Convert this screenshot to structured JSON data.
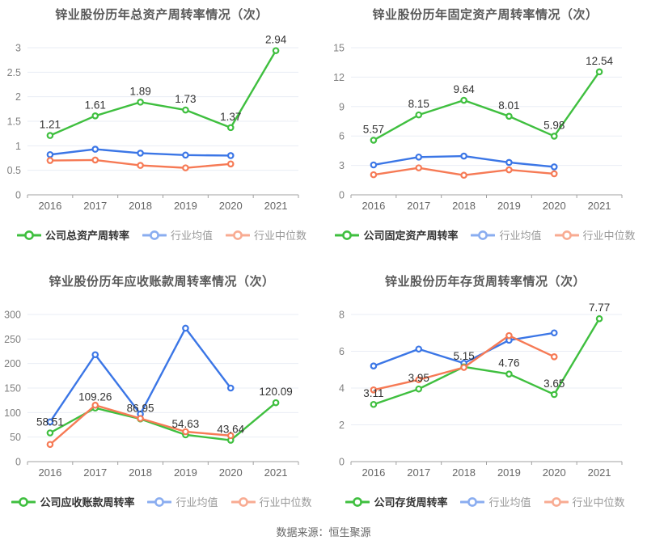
{
  "page": {
    "source_note": "数据来源：恒生聚源"
  },
  "colors": {
    "company_line": "#3fbf3f",
    "industry_mean_line": "#3b76e6",
    "industry_median_line": "#f67a55",
    "legend_mean_marker": "#8aadf0",
    "legend_median_marker": "#f8ab92",
    "grid_line": "#e9edf5",
    "axis_line": "#a0a0a0",
    "tick_text": "#808080",
    "x_tick_text": "#666666",
    "data_label_text": "#333333",
    "title_text": "#595959"
  },
  "chart_data": [
    {
      "type": "line",
      "title": "锌业股份历年总资产周转率情况（次）",
      "x": [
        "2016",
        "2017",
        "2018",
        "2019",
        "2020",
        "2021"
      ],
      "ylim": [
        0,
        3
      ],
      "yticks": [
        0,
        0.5,
        1,
        1.5,
        2,
        2.5,
        3
      ],
      "grid": true,
      "legend_position": "bottom",
      "series": [
        {
          "name": "公司总资产周转率",
          "role": "company",
          "show_labels": true,
          "values": [
            1.21,
            1.61,
            1.89,
            1.73,
            1.37,
            2.94
          ]
        },
        {
          "name": "行业均值",
          "role": "mean",
          "show_labels": false,
          "values": [
            0.82,
            0.93,
            0.85,
            0.81,
            0.8,
            null
          ]
        },
        {
          "name": "行业中位数",
          "role": "median",
          "show_labels": false,
          "values": [
            0.7,
            0.71,
            0.6,
            0.55,
            0.63,
            null
          ]
        }
      ]
    },
    {
      "type": "line",
      "title": "锌业股份历年固定资产周转率情况（次）",
      "x": [
        "2016",
        "2017",
        "2018",
        "2019",
        "2020",
        "2021"
      ],
      "ylim": [
        0,
        15
      ],
      "yticks": [
        0,
        3,
        6,
        9,
        12,
        15
      ],
      "grid": true,
      "legend_position": "bottom",
      "series": [
        {
          "name": "公司固定资产周转率",
          "role": "company",
          "show_labels": true,
          "values": [
            5.57,
            8.15,
            9.64,
            8.01,
            5.98,
            12.54
          ]
        },
        {
          "name": "行业均值",
          "role": "mean",
          "show_labels": false,
          "values": [
            3.05,
            3.85,
            3.95,
            3.3,
            2.85,
            null
          ]
        },
        {
          "name": "行业中位数",
          "role": "median",
          "show_labels": false,
          "values": [
            2.05,
            2.75,
            2.0,
            2.55,
            2.15,
            null
          ]
        }
      ]
    },
    {
      "type": "line",
      "title": "锌业股份历年应收账款周转率情况（次）",
      "x": [
        "2016",
        "2017",
        "2018",
        "2019",
        "2020",
        "2021"
      ],
      "ylim": [
        0,
        300
      ],
      "yticks": [
        0,
        50,
        100,
        150,
        200,
        250,
        300
      ],
      "grid": true,
      "legend_position": "bottom",
      "series": [
        {
          "name": "公司应收账款周转率",
          "role": "company",
          "show_labels": true,
          "values": [
            58.51,
            109.26,
            86.95,
            54.63,
            43.64,
            120.09
          ]
        },
        {
          "name": "行业均值",
          "role": "mean",
          "show_labels": false,
          "values": [
            81,
            218,
            97,
            272,
            150,
            null
          ]
        },
        {
          "name": "行业中位数",
          "role": "median",
          "show_labels": false,
          "values": [
            35,
            115,
            88,
            61,
            53,
            null
          ]
        }
      ]
    },
    {
      "type": "line",
      "title": "锌业股份历年存货周转率情况（次）",
      "x": [
        "2016",
        "2017",
        "2018",
        "2019",
        "2020",
        "2021"
      ],
      "ylim": [
        0,
        8
      ],
      "yticks": [
        0,
        2,
        4,
        6,
        8
      ],
      "grid": true,
      "legend_position": "bottom",
      "series": [
        {
          "name": "公司存货周转率",
          "role": "company",
          "show_labels": true,
          "values": [
            3.11,
            3.95,
            5.15,
            4.76,
            3.65,
            7.77
          ]
        },
        {
          "name": "行业均值",
          "role": "mean",
          "show_labels": false,
          "values": [
            5.2,
            6.12,
            5.35,
            6.6,
            7.0,
            null
          ]
        },
        {
          "name": "行业中位数",
          "role": "median",
          "show_labels": false,
          "values": [
            3.9,
            4.45,
            5.12,
            6.85,
            5.7,
            null
          ]
        }
      ]
    }
  ]
}
